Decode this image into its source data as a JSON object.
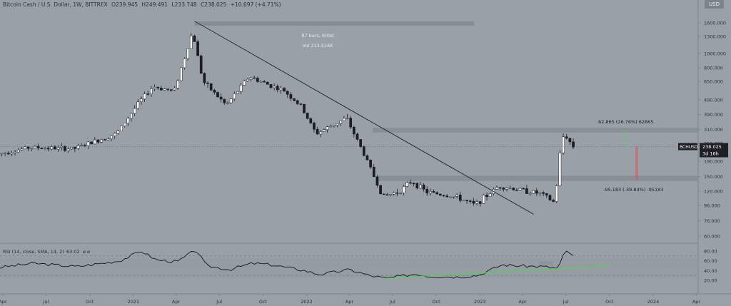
{
  "header": {
    "symbol": "Bitcoin Cash / U.S. Dollar, 1W, BITTREX",
    "open": "O239.945",
    "high": "H249.491",
    "low": "L233.748",
    "close": "C238.025",
    "change": "+10.697 (+4.71%)"
  },
  "currency_button": "USD",
  "annotations": {
    "bars_range": "87 bars, 609d",
    "volume": "Vol 213.516K",
    "upside": "62.865 (26.76%) 62865",
    "downside": "-95.183 (-39.84%) -95183"
  },
  "price_label": {
    "ticker": "BCHUSD",
    "price": "238.025",
    "countdown": "3d 16h"
  },
  "rsi_label": "RSI (14, close, SMA, 14, 2)",
  "rsi_value": "63.02",
  "rsi_extra": "ø ø",
  "colors": {
    "background": "#9aa0a8",
    "candle_up": "#ffffff",
    "candle_down": "#1c1d21",
    "trendline": "#2a2c31",
    "zone": "#888d95",
    "rsi_line": "#15161a",
    "rsi_trend": "#3fe03f",
    "up_box": "#4fe04f",
    "down_box": "#e04a4a"
  },
  "chart_data": [
    {
      "type": "candlestick",
      "title": "Bitcoin Cash / U.S. Dollar, 1W, BITTREX",
      "yscale": "log",
      "y_ticks": [
        1600,
        1300,
        1000,
        800,
        650,
        490,
        390,
        310,
        250,
        190,
        150,
        120,
        96,
        76,
        60
      ],
      "y_tick_labels": [
        "1600.000",
        "1300.000",
        "1000.000",
        "800.000",
        "650.000",
        "490.000",
        "390.000",
        "310.000",
        "250.000",
        "190.000",
        "150.000",
        "120.000",
        "96.000",
        "76.000",
        "60.000"
      ],
      "x_tick_labels": [
        "Apr",
        "Jul",
        "Oct",
        "2021",
        "Apr",
        "Jul",
        "Oct",
        "2022",
        "Apr",
        "Jul",
        "Oct",
        "2023",
        "Apr",
        "Jul",
        "Oct",
        "2024",
        "Apr"
      ],
      "x_ticks": [
        "2020-04",
        "2020-07",
        "2020-10",
        "2021-01",
        "2021-04",
        "2021-07",
        "2021-10",
        "2022-01",
        "2022-04",
        "2022-07",
        "2022-10",
        "2023-01",
        "2023-04",
        "2023-07",
        "2023-10",
        "2024-01",
        "2024-04"
      ],
      "last_price": 238.025,
      "resistance_zone": [
        295,
        318
      ],
      "support_zone": [
        140,
        152
      ],
      "measure_range": {
        "from": "2021-05",
        "to": "2022-12"
      },
      "descending_trendline": [
        [
          "2021-05-10",
          1640
        ],
        [
          "2023-04-24",
          84
        ]
      ],
      "projection_up": {
        "target": 300.9,
        "change": 62.865
      },
      "projection_down": {
        "target": 142.8,
        "change": -95.183
      },
      "key_points": [
        [
          "2020-03-20",
          210
        ],
        [
          "2020-06-01",
          235
        ],
        [
          "2020-09-01",
          230
        ],
        [
          "2020-12-01",
          290
        ],
        [
          "2021-01-15",
          460
        ],
        [
          "2021-02-15",
          600
        ],
        [
          "2021-04-01",
          560
        ],
        [
          "2021-05-10",
          1400
        ],
        [
          "2021-06-01",
          650
        ],
        [
          "2021-07-20",
          450
        ],
        [
          "2021-09-06",
          700
        ],
        [
          "2021-10-15",
          620
        ],
        [
          "2021-11-20",
          560
        ],
        [
          "2021-12-25",
          440
        ],
        [
          "2022-01-25",
          290
        ],
        [
          "2022-03-30",
          370
        ],
        [
          "2022-05-10",
          200
        ],
        [
          "2022-06-15",
          110
        ],
        [
          "2022-07-20",
          120
        ],
        [
          "2022-08-15",
          140
        ],
        [
          "2022-09-15",
          118
        ],
        [
          "2022-11-15",
          110
        ],
        [
          "2022-12-25",
          97
        ],
        [
          "2023-02-15",
          130
        ],
        [
          "2023-03-15",
          125
        ],
        [
          "2023-05-15",
          115
        ],
        [
          "2023-06-12",
          100
        ],
        [
          "2023-06-26",
          260
        ],
        [
          "2023-07-03",
          290
        ],
        [
          "2023-07-20",
          238
        ]
      ]
    },
    {
      "type": "line",
      "title": "RSI (14, close, SMA, 14, 2)",
      "y_ticks": [
        80,
        60,
        40,
        20
      ],
      "y_tick_labels": [
        "80.00",
        "60.00",
        "40.00",
        "20.00"
      ],
      "bands": [
        30,
        70
      ],
      "last_value": 63.02,
      "series": [
        {
          "points": [
            [
              "2020-03-20",
              46
            ],
            [
              "2020-06-01",
              55
            ],
            [
              "2020-09-01",
              48
            ],
            [
              "2020-12-01",
              60
            ],
            [
              "2021-01-15",
              80
            ],
            [
              "2021-02-15",
              62
            ],
            [
              "2021-04-01",
              58
            ],
            [
              "2021-05-10",
              83
            ],
            [
              "2021-06-01",
              50
            ],
            [
              "2021-07-20",
              42
            ],
            [
              "2021-09-06",
              55
            ],
            [
              "2021-10-15",
              52
            ],
            [
              "2021-11-20",
              46
            ],
            [
              "2021-12-25",
              40
            ],
            [
              "2022-01-25",
              32
            ],
            [
              "2022-03-30",
              42
            ],
            [
              "2022-05-10",
              30
            ],
            [
              "2022-06-15",
              24
            ],
            [
              "2022-08-15",
              33
            ],
            [
              "2022-09-15",
              28
            ],
            [
              "2022-11-15",
              27
            ],
            [
              "2022-12-25",
              30
            ],
            [
              "2023-02-15",
              52
            ],
            [
              "2023-03-15",
              50
            ],
            [
              "2023-05-15",
              48
            ],
            [
              "2023-06-12",
              44
            ],
            [
              "2023-06-26",
              78
            ],
            [
              "2023-07-03",
              80
            ],
            [
              "2023-07-20",
              63
            ]
          ]
        }
      ],
      "rising_trendline": [
        [
          "2022-06-15",
          24
        ],
        [
          "2023-10-01",
          50
        ]
      ]
    }
  ]
}
